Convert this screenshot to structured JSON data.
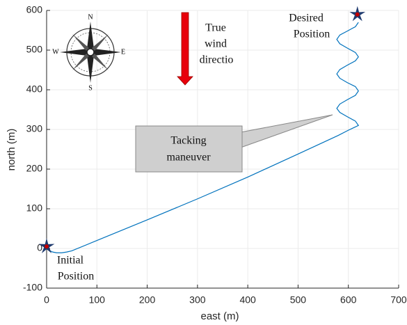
{
  "chart_data": {
    "type": "line",
    "x_label": "east  (m)",
    "y_label": "north  (m)",
    "xlim": [
      0,
      700
    ],
    "xticks": [
      0,
      100,
      200,
      300,
      400,
      500,
      600,
      700
    ],
    "ylim": [
      -100,
      600
    ],
    "yticks": [
      -100,
      0,
      100,
      200,
      300,
      400,
      500,
      600
    ],
    "grid": true,
    "series": [
      {
        "color": "#0072bd",
        "x": [
          0,
          5,
          12,
          20,
          30,
          40,
          50,
          100,
          200,
          300,
          400,
          500,
          580,
          600,
          620,
          614,
          598,
          583,
          577,
          583,
          598,
          614,
          620,
          614,
          598,
          583,
          577,
          583,
          598,
          614,
          620,
          614,
          598,
          583,
          577,
          583,
          598,
          614,
          620
        ],
        "values": [
          0,
          -5,
          -9,
          -11,
          -11,
          -9,
          -6,
          20,
          72,
          125,
          180,
          238,
          285,
          298,
          310,
          321,
          332,
          343,
          353,
          364,
          375,
          386,
          397,
          408,
          418,
          429,
          440,
          451,
          462,
          473,
          483,
          494,
          505,
          516,
          527,
          538,
          548,
          559,
          570
        ]
      }
    ],
    "markers": {
      "x": [
        0,
        618
      ],
      "y": [
        5,
        590
      ],
      "color": "#c00000",
      "edge": "#1f3a6e"
    },
    "annotations": {
      "wind": [
        "True",
        "wind",
        "directio"
      ],
      "desired": [
        "Desired",
        "Position"
      ],
      "initial": [
        "Initial",
        "Position"
      ],
      "tacking": [
        "Tacking",
        "maneuver"
      ],
      "compass": [
        "N",
        "E",
        "S",
        "W"
      ]
    }
  }
}
